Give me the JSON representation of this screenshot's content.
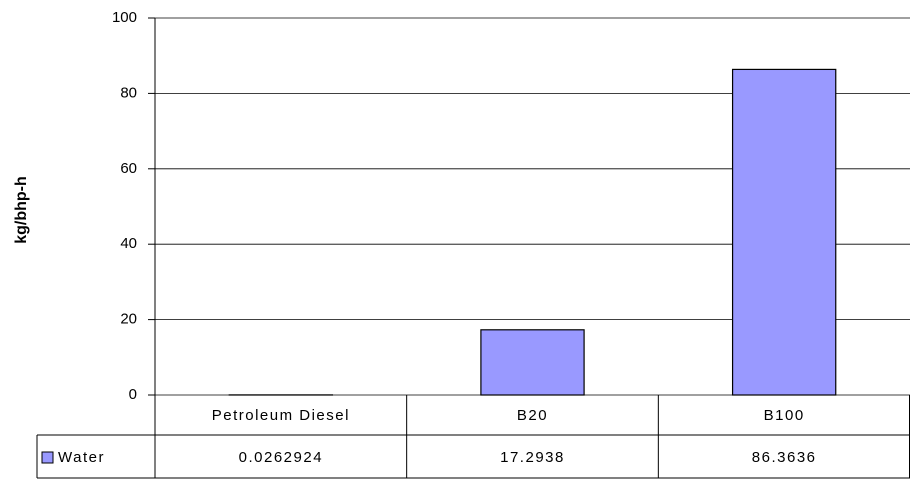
{
  "chart_data": {
    "type": "bar",
    "y_label": "kg/bhp-h",
    "categories": [
      "Petroleum Diesel",
      "B20",
      "B100"
    ],
    "series": [
      {
        "name": "Water",
        "color": "#9999ff",
        "values": [
          0.0262924,
          17.2938,
          86.3636
        ]
      }
    ],
    "ylim": [
      0,
      100
    ],
    "yticks": [
      0,
      20,
      40,
      60,
      80,
      100
    ],
    "grid": true,
    "data_table": true
  }
}
